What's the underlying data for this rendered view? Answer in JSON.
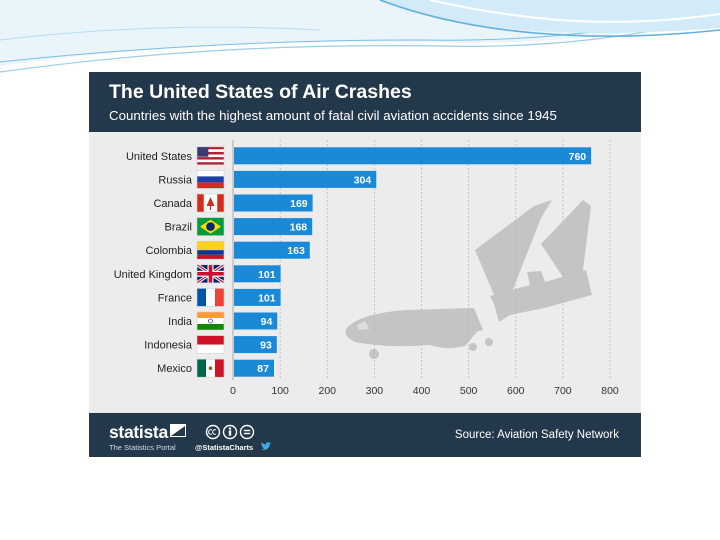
{
  "header": {
    "title": "The United States of Air Crashes",
    "subtitle": "Countries with the highest amount of fatal civil aviation accidents since 1945"
  },
  "chart_data": {
    "type": "bar",
    "orientation": "horizontal",
    "title": "The United States of Air Crashes",
    "subtitle": "Countries with the highest amount of fatal civil aviation accidents since 1945",
    "categories": [
      "United States",
      "Russia",
      "Canada",
      "Brazil",
      "Colombia",
      "United Kingdom",
      "France",
      "India",
      "Indonesia",
      "Mexico"
    ],
    "values": [
      760,
      304,
      169,
      168,
      163,
      101,
      101,
      94,
      93,
      87
    ],
    "xlim": [
      0,
      800
    ],
    "xticks": [
      0,
      100,
      200,
      300,
      400,
      500,
      600,
      700,
      800
    ],
    "xlabel": "",
    "ylabel": "",
    "grid": "vertical dashed",
    "legend": "none",
    "bar_color": "#1a8ad8",
    "label_color": "#ffffff"
  },
  "colors": {
    "header_bg": "#23384b",
    "card_bg": "#ececec",
    "bar": "#1a8ad8",
    "plane": "#c4c4c4",
    "accent": "#1a8ad8"
  },
  "footer": {
    "brand": "statista",
    "tagline": "The Statistics Portal",
    "handle": "@StatistaCharts",
    "source": "Source: Aviation Safety Network"
  },
  "icons": {
    "logo": "statista-logo-icon",
    "license": [
      "cc-icon",
      "by-icon",
      "nd-icon"
    ],
    "social": "twitter-icon",
    "decoration": "airplane-icon"
  }
}
